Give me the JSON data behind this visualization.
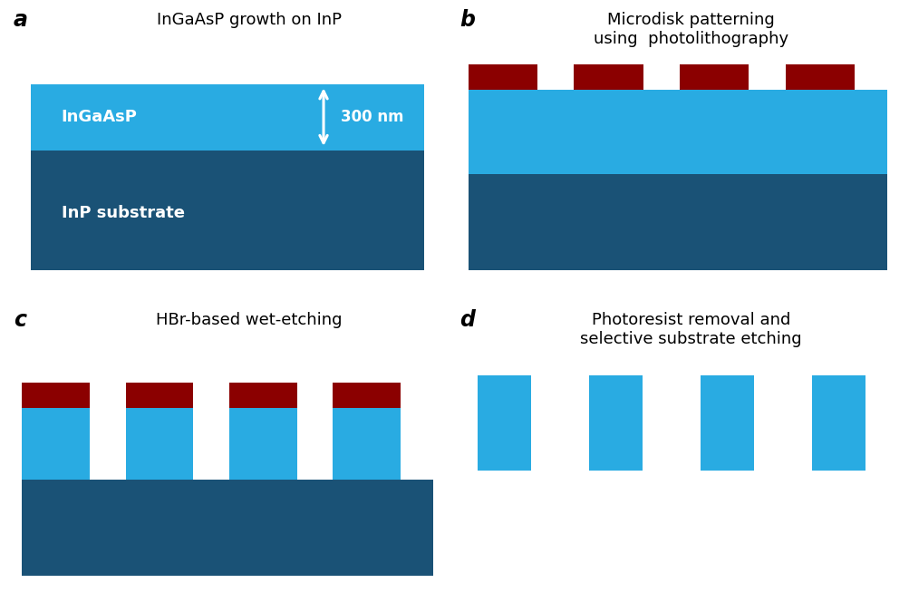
{
  "bg_color": "#ffffff",
  "light_blue": "#29ABE2",
  "dark_blue": "#1A5276",
  "dark_red": "#8B0000",
  "panel_a": {
    "label": "a",
    "title": "InGaAsP growth on InP",
    "ingaasp_label": "InGaAsP",
    "inp_label": "InP substrate",
    "arrow_label": "300 nm"
  },
  "panel_b": {
    "label": "b",
    "title": "Microdisk patterning\nusing  photolithography"
  },
  "panel_c": {
    "label": "c",
    "title": "HBr-based wet-etching"
  },
  "panel_d": {
    "label": "d",
    "title": "Photoresist removal and\nselective substrate etching"
  }
}
